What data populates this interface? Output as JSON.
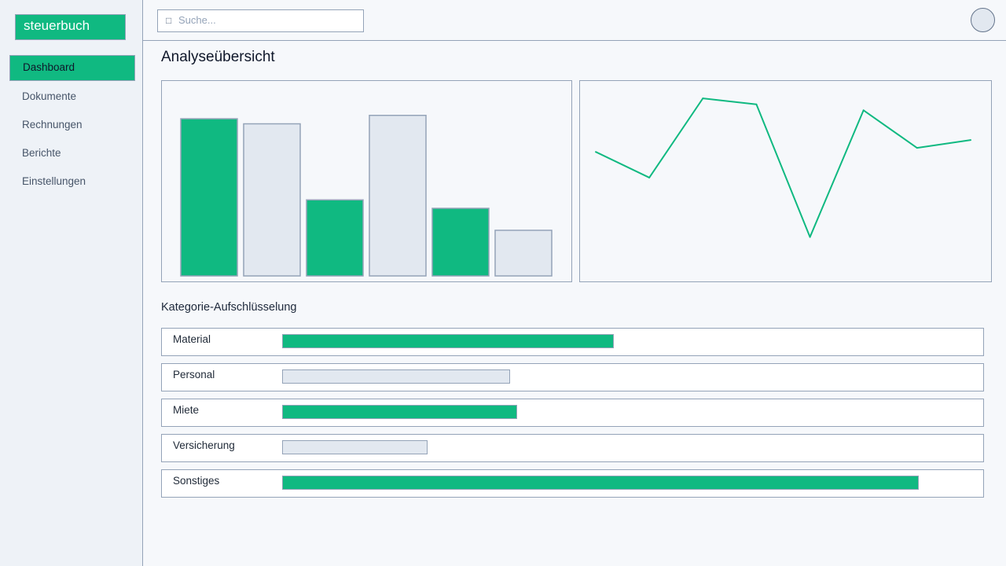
{
  "app": {
    "logo": "steuerbuch"
  },
  "sidebar": {
    "items": [
      {
        "label": "Dashboard",
        "active": true
      },
      {
        "label": "Dokumente",
        "active": false
      },
      {
        "label": "Rechnungen",
        "active": false
      },
      {
        "label": "Berichte",
        "active": false
      },
      {
        "label": "Einstellungen",
        "active": false
      }
    ]
  },
  "header": {
    "search": {
      "placeholder": "Suche...",
      "icon": "search-icon"
    },
    "avatar": "user-avatar"
  },
  "main": {
    "title": "Analyseübersicht",
    "section_title": "Kategorie-Aufschlüsselung"
  },
  "colors": {
    "accent": "#10b981",
    "muted": "#e2e8f0",
    "border": "#94a3b8"
  },
  "chart_data": [
    {
      "type": "bar",
      "categories": [
        "",
        "",
        "",
        "",
        "",
        ""
      ],
      "values": [
        93,
        90,
        45,
        95,
        40,
        27
      ],
      "colors": [
        "#10b981",
        "#e2e8f0",
        "#10b981",
        "#e2e8f0",
        "#10b981",
        "#e2e8f0"
      ],
      "ylim": [
        0,
        100
      ],
      "grid": false
    },
    {
      "type": "line",
      "x": [
        1,
        2,
        3,
        4,
        5,
        6,
        7,
        8
      ],
      "series": [
        {
          "values": [
            65,
            52,
            92,
            89,
            22,
            86,
            67,
            71
          ]
        }
      ],
      "ylim": [
        0,
        100
      ],
      "grid": false,
      "color": "#10b981"
    },
    {
      "type": "bar",
      "orientation": "horizontal",
      "categories": [
        "Material",
        "Personal",
        "Miete",
        "Versicherung",
        "Sonstiges"
      ],
      "values": [
        48,
        33,
        34,
        21,
        92
      ],
      "colors": [
        "#10b981",
        "#e2e8f0",
        "#10b981",
        "#e2e8f0",
        "#10b981"
      ],
      "xlim": [
        0,
        100
      ]
    }
  ]
}
